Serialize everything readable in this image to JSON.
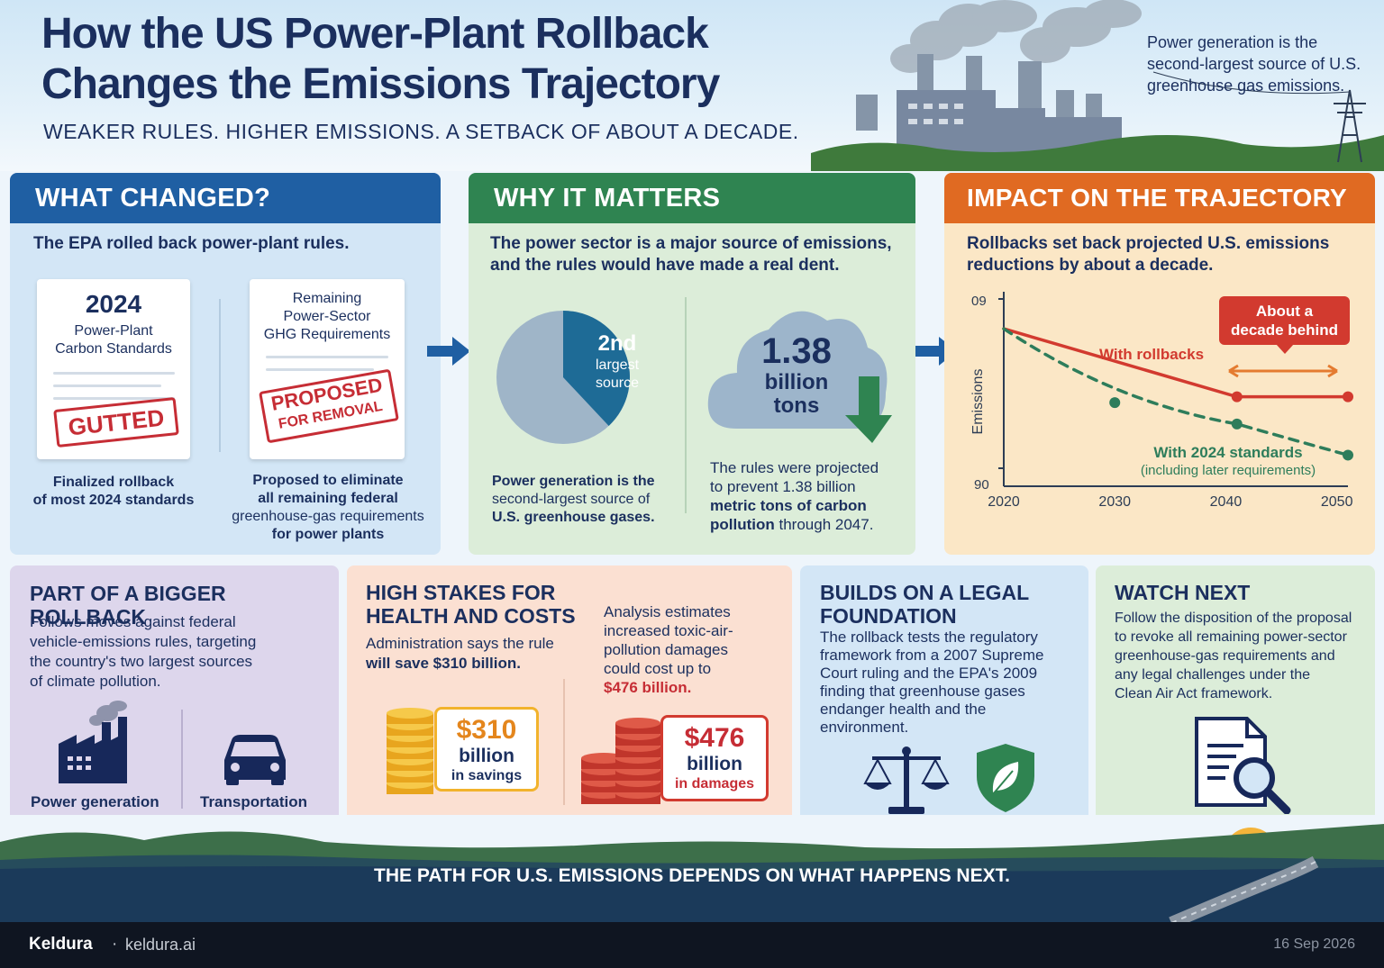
{
  "header": {
    "title_line1": "How the US Power-Plant Rollback",
    "title_line2": "Changes the Emissions Trajectory",
    "subtitle": "WEAKER RULES. HIGHER EMISSIONS. A SETBACK OF ABOUT A DECADE.",
    "note": "Power generation is the second-largest source of U.S. greenhouse gas emissions."
  },
  "what_changed": {
    "heading": "WHAT CHANGED?",
    "lead": "The EPA rolled back power-plant rules.",
    "card1": {
      "year": "2024",
      "label_line1": "Power-Plant",
      "label_line2": "Carbon Standards",
      "stamp": "GUTTED"
    },
    "card2": {
      "label_line1": "Remaining",
      "label_line2": "Power-Sector",
      "label_line3": "GHG Requirements",
      "stamp_line1": "PROPOSED",
      "stamp_line2": "FOR REMOVAL"
    },
    "caption1_line1": "Finalized rollback",
    "caption1_line2": "of most 2024 standards",
    "caption2_line1": "Proposed to eliminate",
    "caption2_line2": "all remaining federal",
    "caption2_line3": "greenhouse-gas requirements",
    "caption2_line4": "for power plants"
  },
  "why_it_matters": {
    "heading": "WHY IT MATTERS",
    "lead_line1": "The power sector is a major source of emissions,",
    "lead_line2": "and the rules would have made a real dent.",
    "pie": {
      "rank": "2nd",
      "label_line1": "largest",
      "label_line2": "source",
      "slice_share": 0.38
    },
    "pie_caption_line1": "Power generation is the",
    "pie_caption_line2": "second-largest source of",
    "pie_caption_line3": "U.S. greenhouse gases.",
    "cloud": {
      "value": "1.38",
      "unit_line1": "billion",
      "unit_line2": "tons"
    },
    "cloud_caption_line1": "The rules were projected",
    "cloud_caption_line2": "to prevent 1.38 billion",
    "cloud_caption_line3": "metric tons of carbon",
    "cloud_caption_line4a": "pollution",
    "cloud_caption_line4b": " through 2047."
  },
  "impact": {
    "heading": "IMPACT ON THE TRAJECTORY",
    "lead_line1": "Rollbacks set back projected U.S. emissions",
    "lead_line2": "reductions by about a decade.",
    "callout_line1": "About a",
    "callout_line2": "decade behind",
    "label_rollbacks": "With rollbacks",
    "label_standards_line1": "With 2024 standards",
    "label_standards_line2": "(including later requirements)",
    "ylabel": "Emissions",
    "y_tick_top": "09",
    "y_tick_bottom": "90",
    "x_ticks": [
      "2020",
      "2030",
      "2040",
      "2050"
    ]
  },
  "chart_data": {
    "type": "line",
    "title": "",
    "xlabel": "",
    "ylabel": "Emissions",
    "x_ticks": [
      2020,
      2030,
      2040,
      2050
    ],
    "xlim": [
      2020,
      2051
    ],
    "ylim": [
      0,
      1
    ],
    "series": [
      {
        "name": "With rollbacks",
        "x": [
          2020,
          2041,
          2051
        ],
        "y": [
          0.81,
          0.46,
          0.46
        ],
        "color": "#d23a2f"
      },
      {
        "name": "With 2024 standards (including later requirements)",
        "x": [
          2020,
          2030,
          2041,
          2051
        ],
        "y": [
          0.81,
          0.43,
          0.32,
          0.16
        ],
        "color": "#2e7d5b"
      }
    ],
    "annotation": "About a decade behind",
    "grid": false
  },
  "bigger_rollback": {
    "heading": "PART OF A BIGGER ROLLBACK",
    "text_line1": "Follows moves against federal",
    "text_line2": "vehicle-emissions rules, targeting",
    "text_line3": "the country's two largest sources",
    "text_line4": "of climate pollution.",
    "icon1_label": "Power generation",
    "icon2_label": "Transportation"
  },
  "high_stakes": {
    "heading_line1": "HIGH STAKES FOR",
    "heading_line2": "HEALTH AND COSTS",
    "lead_line1": "Administration says the rule",
    "lead_line2": "will save $310 billion.",
    "analysis_line1": "Analysis estimates",
    "analysis_line2": "increased toxic-air-",
    "analysis_line3": "pollution damages",
    "analysis_line4": "could cost up to",
    "analysis_line5": "$476 billion.",
    "savings": {
      "value": "$310",
      "unit": "billion",
      "label": "in savings"
    },
    "damages": {
      "value": "$476",
      "unit": "billion",
      "label": "in damages"
    }
  },
  "legal": {
    "heading_line1": "BUILDS ON A LEGAL",
    "heading_line2": "FOUNDATION",
    "text_line1": "The rollback tests the regulatory",
    "text_line2": "framework from a 2007 Supreme",
    "text_line3": "Court ruling and the EPA's 2009",
    "text_line4": "finding that greenhouse gases",
    "text_line5": "endanger health and the",
    "text_line6": "environment."
  },
  "watch_next": {
    "heading": "WATCH NEXT",
    "text_line1": "Follow the disposition of the proposal",
    "text_line2": "to revoke all remaining power-sector",
    "text_line3": "greenhouse-gas requirements and",
    "text_line4": "any legal challenges under the",
    "text_line5": "Clean Air Act framework."
  },
  "banner": {
    "text": "THE PATH FOR U.S. EMISSIONS DEPENDS ON WHAT HAPPENS NEXT."
  },
  "footer": {
    "brand": "Keldura",
    "separator": "·",
    "site": "keldura.ai",
    "date": "16 Sep 2026"
  },
  "colors": {
    "blue": "#1f5fa3",
    "green": "#2f8451",
    "orange": "#e06a22",
    "red": "#c62d35",
    "navy": "#1b2f5e"
  }
}
